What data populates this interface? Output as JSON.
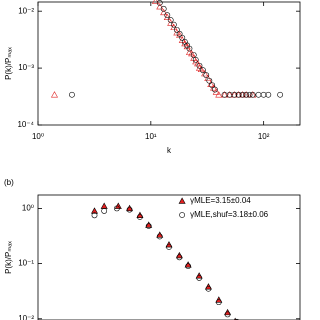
{
  "chart_data": [
    {
      "type": "scatter",
      "log_x": true,
      "log_y": true,
      "x_label": "k",
      "y_label": "P(k)/Pₘₐₓ",
      "xlim": [
        1,
        210
      ],
      "ylim": [
        0.0001,
        0.0145
      ],
      "xticks": [
        {
          "value": 1,
          "label": "10⁰"
        },
        {
          "value": 10,
          "label": "10¹"
        },
        {
          "value": 100,
          "label": "10²"
        }
      ],
      "yticks": [
        {
          "value": 0.0001,
          "label": "10⁻⁴"
        },
        {
          "value": 0.001,
          "label": "10⁻³"
        },
        {
          "value": 0.01,
          "label": "10⁻²"
        }
      ],
      "series": [
        {
          "marker": "triangle-open",
          "color": "#e02020",
          "x": [
            11,
            12,
            13,
            14,
            15,
            16,
            17,
            18,
            19,
            20,
            21,
            22,
            23,
            24,
            25,
            26,
            27,
            28,
            30,
            32,
            34,
            36,
            38,
            40,
            1.4,
            45,
            50,
            55,
            60,
            65,
            70,
            80
          ],
          "values": [
            0.015,
            0.012,
            0.0095,
            0.0078,
            0.0062,
            0.0052,
            0.0042,
            0.0038,
            0.0031,
            0.0027,
            0.0024,
            0.0019,
            0.0018,
            0.0015,
            0.0013,
            0.0012,
            0.001,
            0.00095,
            0.0008,
            0.00066,
            0.00052,
            0.00045,
            0.00038,
            0.00034,
            0.00034,
            0.00034,
            0.00034,
            0.00034,
            0.00034,
            0.00034,
            0.00034,
            0.00034
          ]
        },
        {
          "marker": "circle-open",
          "color": "#000000",
          "x": [
            12,
            13,
            14,
            15,
            16,
            17,
            18,
            19,
            20,
            21,
            22,
            24,
            25,
            27,
            29,
            31,
            33,
            35,
            37,
            2,
            45,
            50,
            55,
            60,
            65,
            70,
            75,
            80,
            90,
            100,
            110,
            140
          ],
          "values": [
            0.014,
            0.011,
            0.0085,
            0.007,
            0.0058,
            0.0047,
            0.004,
            0.0034,
            0.0029,
            0.0025,
            0.0022,
            0.0017,
            0.0014,
            0.0011,
            0.00092,
            0.00075,
            0.0006,
            0.0005,
            0.00042,
            0.00034,
            0.00034,
            0.00034,
            0.00034,
            0.00034,
            0.00034,
            0.00034,
            0.00034,
            0.00034,
            0.00034,
            0.00034,
            0.00034,
            0.00034
          ]
        }
      ]
    },
    {
      "type": "scatter",
      "log_x": true,
      "log_y": true,
      "panel_label": "(b)",
      "y_label": "P(k)/Pₘₐₓ",
      "legend": "upper right",
      "xlim": [
        1,
        100
      ],
      "ylim": [
        0.0095,
        1.75
      ],
      "yticks": [
        {
          "value": 0.01,
          "label": "10⁻²"
        },
        {
          "value": 0.1,
          "label": "10⁻¹"
        },
        {
          "value": 1,
          "label": "10⁰"
        }
      ],
      "series": [
        {
          "name": "γMLE=3.15±0.04",
          "marker": "triangle-filled",
          "color": "#e02020",
          "x": [
            2.7,
            3.2,
            4.1,
            5,
            6,
            7,
            8.5,
            10,
            12,
            14,
            17,
            20,
            24,
            28,
            32
          ],
          "values": [
            0.9,
            1.1,
            1.1,
            1.0,
            0.75,
            0.5,
            0.33,
            0.22,
            0.14,
            0.095,
            0.06,
            0.038,
            0.022,
            0.013,
            0.009
          ]
        },
        {
          "name": "γMLE,shuf=3.18±0.06",
          "marker": "circle-open",
          "color": "#000000",
          "x": [
            2.7,
            3.2,
            4,
            5,
            6,
            7,
            8.5,
            10,
            12,
            14,
            17,
            20,
            24,
            28,
            33
          ],
          "values": [
            0.75,
            0.9,
            1.0,
            0.95,
            0.7,
            0.48,
            0.31,
            0.2,
            0.13,
            0.09,
            0.055,
            0.035,
            0.02,
            0.012,
            0.0088
          ]
        }
      ]
    }
  ]
}
